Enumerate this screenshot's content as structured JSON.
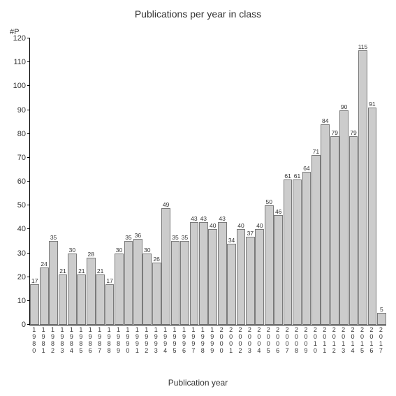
{
  "chart": {
    "type": "bar",
    "title": "Publications per year in class",
    "title_fontsize": 14,
    "y_axis_label": "#P",
    "x_axis_label": "Publication year",
    "label_fontsize": 12,
    "background_color": "#ffffff",
    "bar_fill_color": "#cccccc",
    "bar_border_color": "#7a7a7a",
    "text_color": "#333333",
    "axis_color": "#000000",
    "ylim": [
      0,
      120
    ],
    "ytick_step": 10,
    "yticks": [
      0,
      10,
      20,
      30,
      40,
      50,
      60,
      70,
      80,
      90,
      100,
      110,
      120
    ],
    "categories": [
      "1980",
      "1981",
      "1982",
      "1983",
      "1984",
      "1985",
      "1986",
      "1987",
      "1988",
      "1989",
      "1990",
      "1991",
      "1992",
      "1993",
      "1994",
      "1995",
      "1996",
      "1997",
      "1998",
      "1999",
      "2000",
      "2001",
      "2002",
      "2003",
      "2004",
      "2005",
      "2006",
      "2007",
      "2008",
      "2009",
      "2010",
      "2011",
      "2012",
      "2013",
      "2014",
      "2015",
      "2016",
      "2017"
    ],
    "values": [
      17,
      24,
      35,
      21,
      30,
      21,
      28,
      21,
      17,
      30,
      35,
      36,
      30,
      26,
      49,
      35,
      35,
      43,
      43,
      40,
      43,
      34,
      40,
      37,
      40,
      50,
      46,
      61,
      61,
      64,
      71,
      84,
      79,
      90,
      79,
      115,
      91,
      5
    ],
    "bar_value_fontsize": 8.5,
    "x_label_fontsize": 9,
    "y_label_fontsize": 11
  }
}
